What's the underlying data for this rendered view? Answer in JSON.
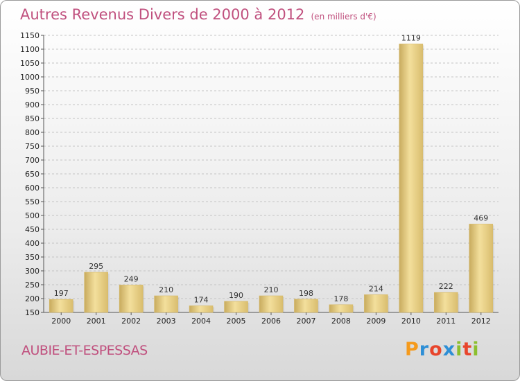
{
  "header": {
    "title": "Autres Revenus Divers de 2000 à 2012",
    "subtitle": "(en milliers d'€)"
  },
  "location": "AUBIE-ET-ESPESSAS",
  "brand": {
    "name": "Proxiti",
    "letters": [
      {
        "ch": "P",
        "color": "#f59a1c"
      },
      {
        "ch": "r",
        "color": "#2e8fd6"
      },
      {
        "ch": "o",
        "color": "#e8452c"
      },
      {
        "ch": "x",
        "color": "#2e8fd6"
      },
      {
        "ch": "i",
        "color": "#8cbf2e"
      },
      {
        "ch": "t",
        "color": "#e8452c"
      },
      {
        "ch": "i",
        "color": "#8cbf2e"
      }
    ]
  },
  "chart_data": {
    "type": "bar",
    "categories": [
      "2000",
      "2001",
      "2002",
      "2003",
      "2004",
      "2005",
      "2006",
      "2007",
      "2008",
      "2009",
      "2010",
      "2011",
      "2012"
    ],
    "values": [
      197,
      295,
      249,
      210,
      174,
      190,
      210,
      198,
      178,
      214,
      1119,
      222,
      469
    ],
    "ylim": [
      150,
      1150
    ],
    "yticks": [
      150,
      200,
      250,
      300,
      350,
      400,
      450,
      500,
      550,
      600,
      650,
      700,
      750,
      800,
      850,
      900,
      950,
      1000,
      1050,
      1100,
      1150
    ],
    "grid": "horizontal dashed",
    "bar_color": "#e0c478"
  }
}
